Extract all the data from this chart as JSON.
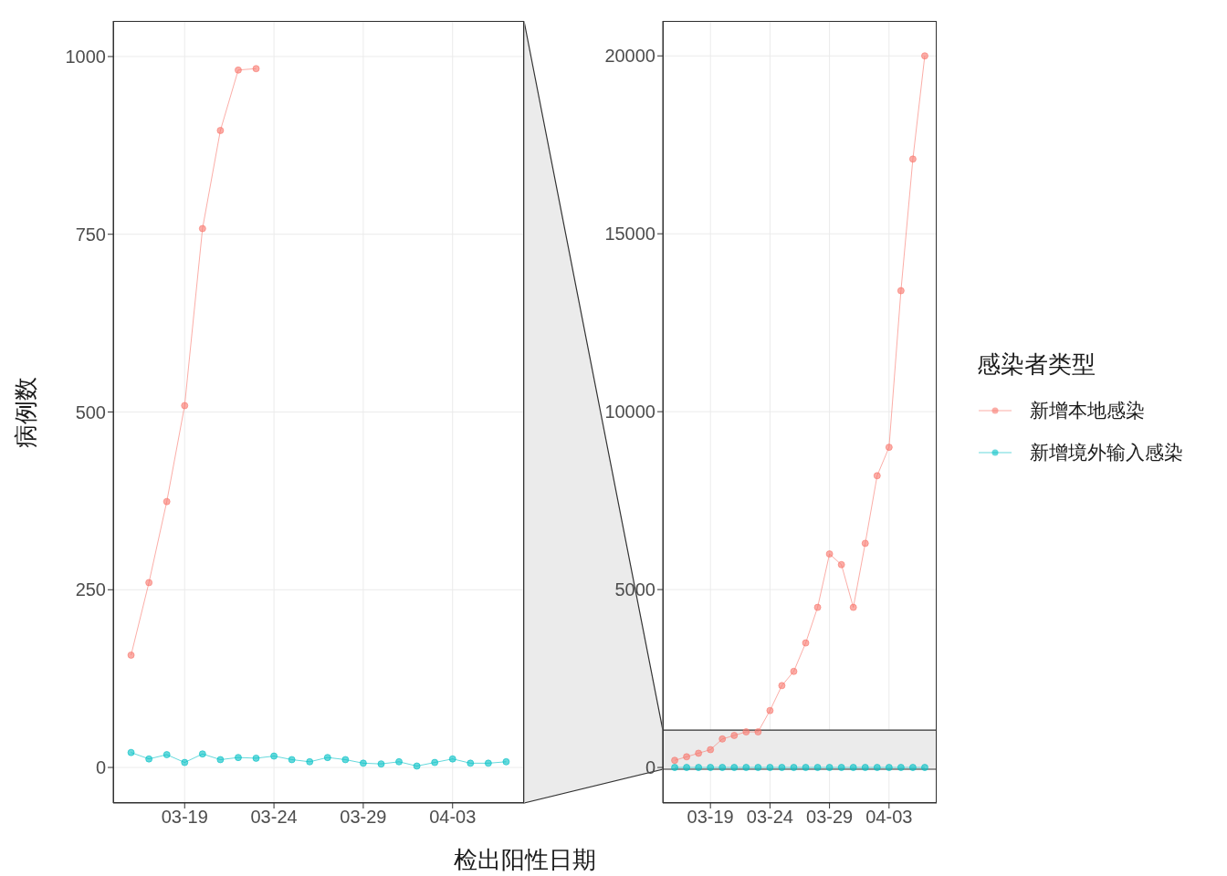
{
  "chart_data": [
    {
      "type": "line",
      "xlabel": "检出阳性日期",
      "ylabel": "病例数",
      "x": [
        "--03-16",
        "--03-17",
        "--03-18",
        "--03-19",
        "--03-20",
        "--03-21",
        "--03-22",
        "--03-23",
        "--03-24",
        "--03-25",
        "--03-26",
        "--03-27",
        "--03-28",
        "--03-29",
        "--03-30",
        "--03-31",
        "--04-01",
        "--04-02",
        "--04-03",
        "--04-04",
        "--04-05",
        "--04-06"
      ],
      "series": [
        {
          "color": "#f8766d",
          "values": [
            158,
            260,
            374,
            509,
            758,
            896,
            981,
            983,
            null,
            null,
            null,
            null,
            null,
            null,
            null,
            null,
            null,
            null,
            null,
            null,
            null,
            null
          ]
        },
        {
          "color": "#00bfc4",
          "values": [
            21,
            12,
            18,
            7,
            19,
            11,
            14,
            13,
            16,
            11,
            8,
            14,
            11,
            6,
            5,
            8,
            2,
            7,
            12,
            6,
            6,
            8
          ]
        }
      ],
      "xlim": [
        "--03-15",
        "--04-07"
      ],
      "xticks": [
        {
          "value": "--03-19",
          "label": "03-19"
        },
        {
          "value": "--03-24",
          "label": "03-24"
        },
        {
          "value": "--03-29",
          "label": "03-29"
        },
        {
          "value": "--04-03",
          "label": "04-03"
        }
      ],
      "ylim": [
        -50,
        1050
      ],
      "yticks": [
        0,
        250,
        500,
        750,
        1000
      ],
      "grid": true,
      "marker": "circle"
    },
    {
      "type": "line",
      "x": [
        "--03-16",
        "--03-17",
        "--03-18",
        "--03-19",
        "--03-20",
        "--03-21",
        "--03-22",
        "--03-23",
        "--03-24",
        "--03-25",
        "--03-26",
        "--03-27",
        "--03-28",
        "--03-29",
        "--03-30",
        "--03-31",
        "--04-01",
        "--04-02",
        "--04-03",
        "--04-04",
        "--04-05",
        "--04-06"
      ],
      "series": [
        {
          "name": "新增本地感染",
          "color": "#f8766d",
          "values": [
            200,
            300,
            400,
            500,
            800,
            900,
            1000,
            1000,
            1600,
            2300,
            2700,
            3500,
            4500,
            6000,
            5700,
            4500,
            6300,
            8200,
            9000,
            13400,
            17100,
            20000
          ]
        },
        {
          "name": "新增境外输入感染",
          "color": "#00bfc4",
          "values": [
            0,
            0,
            0,
            0,
            0,
            0,
            0,
            0,
            0,
            0,
            0,
            0,
            0,
            0,
            0,
            0,
            0,
            0,
            0,
            0,
            0,
            0
          ]
        }
      ],
      "xlim": [
        "--03-15",
        "--04-07"
      ],
      "xticks": [
        {
          "value": "--03-19",
          "label": "03-19"
        },
        {
          "value": "--03-24",
          "label": "03-24"
        },
        {
          "value": "--03-29",
          "label": "03-29"
        },
        {
          "value": "--04-03",
          "label": "04-03"
        }
      ],
      "ylim": [
        -999,
        20981
      ],
      "yticks": [
        0,
        5000,
        10000,
        15000,
        20000
      ],
      "grid": true,
      "marker": "circle",
      "legend": "right",
      "legend_title": "感染者类型",
      "bands": [
        {
          "axis": "y",
          "from": -50,
          "to": 1050,
          "color": "#ebebeb"
        }
      ]
    }
  ]
}
